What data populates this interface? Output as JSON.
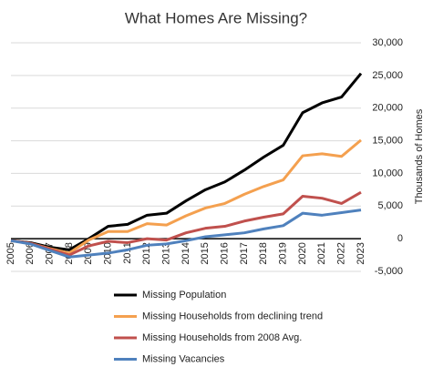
{
  "chart_data": {
    "type": "line",
    "title": "What Homes Are Missing?",
    "y_label": "Thousands of Homes",
    "categories": [
      "2005",
      "2006",
      "2007",
      "2008",
      "2009",
      "2010",
      "2011",
      "2012",
      "2013",
      "2014",
      "2015",
      "2016",
      "2017",
      "2018",
      "2019",
      "2020",
      "2021",
      "2022",
      "2023"
    ],
    "series": [
      {
        "name": "Missing Population",
        "color": "#000000",
        "values": [
          -300,
          -600,
          -1300,
          -1700,
          0,
          1900,
          2200,
          3600,
          3900,
          5800,
          7500,
          8700,
          10500,
          12500,
          14300,
          19300,
          20800,
          21700,
          25300
        ]
      },
      {
        "name": "Missing Households from declining trend",
        "color": "#f4a04f",
        "values": [
          -300,
          -700,
          -1500,
          -2200,
          -200,
          1100,
          1100,
          2300,
          2100,
          3500,
          4700,
          5400,
          6800,
          8000,
          9000,
          12700,
          13000,
          12600,
          15100
        ]
      },
      {
        "name": "Missing Households from 2008 Avg.",
        "color": "#c0504d",
        "values": [
          -300,
          -700,
          -1600,
          -2500,
          -1100,
          -400,
          -600,
          0,
          -200,
          900,
          1600,
          1900,
          2700,
          3300,
          3800,
          6500,
          6200,
          5400,
          7100
        ]
      },
      {
        "name": "Missing Vacancies",
        "color": "#4f81bd",
        "values": [
          -300,
          -800,
          -1800,
          -2800,
          -2500,
          -2200,
          -1700,
          -1000,
          -800,
          -300,
          300,
          600,
          900,
          1500,
          2000,
          3900,
          3600,
          4000,
          4400
        ]
      }
    ],
    "ylim": [
      -5000,
      30000
    ],
    "yticks": [
      {
        "value": -5000,
        "label": "-5,000"
      },
      0,
      {
        "value": 5000,
        "label": "5,000"
      },
      {
        "value": 10000,
        "label": "10,000"
      },
      {
        "value": 15000,
        "label": "15,000"
      },
      {
        "value": 20000,
        "label": "20,000"
      },
      {
        "value": 25000,
        "label": "25,000"
      },
      {
        "value": 30000,
        "label": "30,000"
      }
    ],
    "grid": true
  }
}
